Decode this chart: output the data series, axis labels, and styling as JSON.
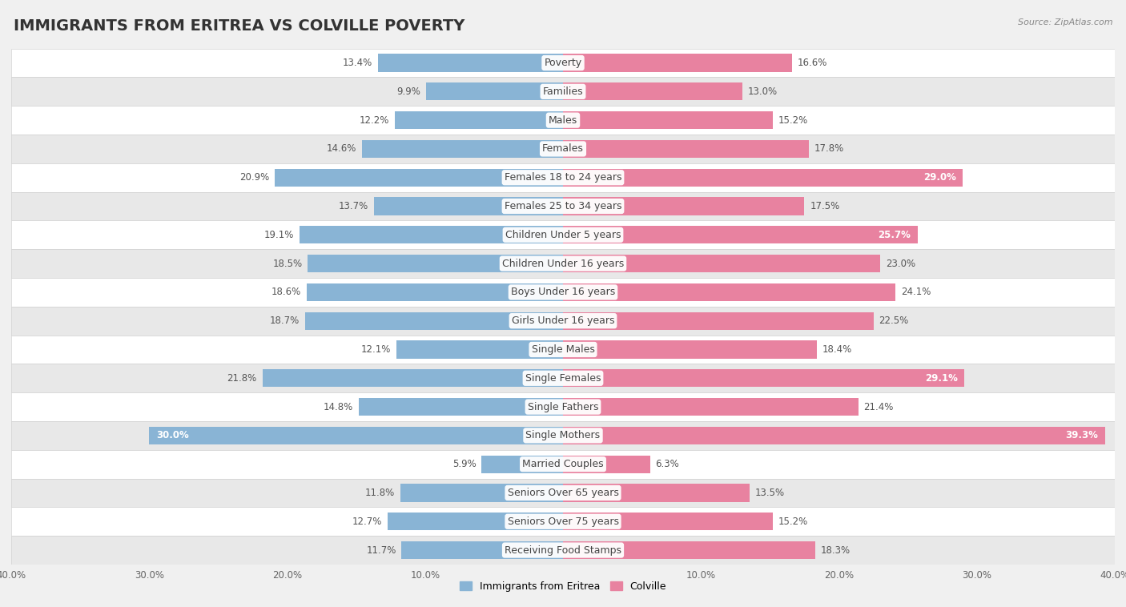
{
  "title": "IMMIGRANTS FROM ERITREA VS COLVILLE POVERTY",
  "source": "Source: ZipAtlas.com",
  "categories": [
    "Poverty",
    "Families",
    "Males",
    "Females",
    "Females 18 to 24 years",
    "Females 25 to 34 years",
    "Children Under 5 years",
    "Children Under 16 years",
    "Boys Under 16 years",
    "Girls Under 16 years",
    "Single Males",
    "Single Females",
    "Single Fathers",
    "Single Mothers",
    "Married Couples",
    "Seniors Over 65 years",
    "Seniors Over 75 years",
    "Receiving Food Stamps"
  ],
  "eritrea_values": [
    13.4,
    9.9,
    12.2,
    14.6,
    20.9,
    13.7,
    19.1,
    18.5,
    18.6,
    18.7,
    12.1,
    21.8,
    14.8,
    30.0,
    5.9,
    11.8,
    12.7,
    11.7
  ],
  "colville_values": [
    16.6,
    13.0,
    15.2,
    17.8,
    29.0,
    17.5,
    25.7,
    23.0,
    24.1,
    22.5,
    18.4,
    29.1,
    21.4,
    39.3,
    6.3,
    13.5,
    15.2,
    18.3
  ],
  "eritrea_color": "#89b4d5",
  "colville_color": "#e882a0",
  "eritrea_label": "Immigrants from Eritrea",
  "colville_label": "Colville",
  "xlim": 40.0,
  "background_color": "#f0f0f0",
  "row_color_odd": "#ffffff",
  "row_color_even": "#e8e8e8",
  "title_fontsize": 14,
  "label_fontsize": 9,
  "value_fontsize": 8.5,
  "bar_height": 0.62,
  "white_text_threshold_eritrea": 25.0,
  "white_text_threshold_colville": 25.0
}
